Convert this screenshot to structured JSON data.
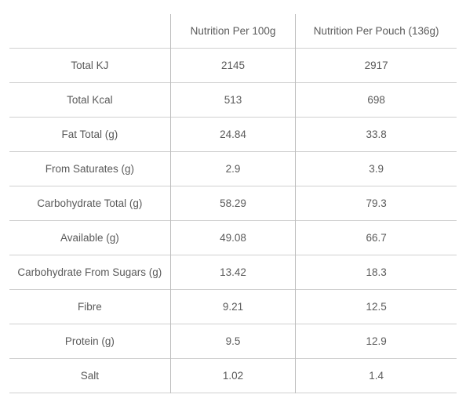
{
  "table": {
    "type": "table",
    "background_color": "#ffffff",
    "border_color": "#bdbdbd",
    "text_color": "#5a5a5a",
    "font_size_pt": 10,
    "column_widths_pct": [
      36,
      28,
      36
    ],
    "columns": [
      "",
      "Nutrition Per 100g",
      "Nutrition Per Pouch (136g)"
    ],
    "rows": [
      {
        "label": "Total KJ",
        "per_100g": "2145",
        "per_pouch": "2917"
      },
      {
        "label": "Total Kcal",
        "per_100g": "513",
        "per_pouch": "698"
      },
      {
        "label": "Fat Total (g)",
        "per_100g": "24.84",
        "per_pouch": "33.8"
      },
      {
        "label": "From Saturates (g)",
        "per_100g": "2.9",
        "per_pouch": "3.9"
      },
      {
        "label": "Carbohydrate Total (g)",
        "per_100g": "58.29",
        "per_pouch": "79.3"
      },
      {
        "label": "Available (g)",
        "per_100g": "49.08",
        "per_pouch": "66.7"
      },
      {
        "label": "Carbohydrate From Sugars (g)",
        "per_100g": "13.42",
        "per_pouch": "18.3"
      },
      {
        "label": "Fibre",
        "per_100g": "9.21",
        "per_pouch": "12.5"
      },
      {
        "label": "Protein (g)",
        "per_100g": "9.5",
        "per_pouch": "12.9"
      },
      {
        "label": "Salt",
        "per_100g": "1.02",
        "per_pouch": "1.4"
      }
    ]
  }
}
